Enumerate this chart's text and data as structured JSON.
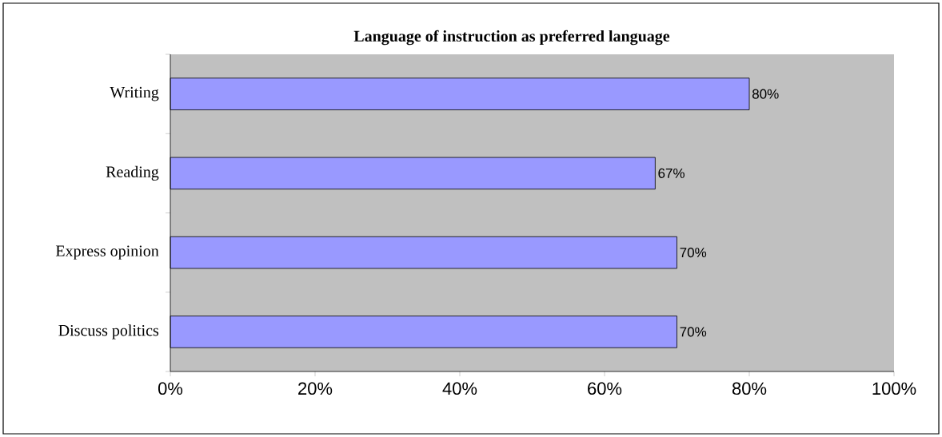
{
  "chart_data": {
    "type": "bar",
    "orientation": "horizontal",
    "title": "Language of instruction as preferred language",
    "categories": [
      "Writing",
      "Reading",
      "Express opinion",
      "Discuss politics"
    ],
    "values": [
      80,
      67,
      70,
      70
    ],
    "value_labels": [
      "80%",
      "67%",
      "70%",
      "70%"
    ],
    "color": "#9999ff",
    "xlim": [
      0,
      100
    ],
    "xticks": [
      {
        "value": 0,
        "label": "0%"
      },
      {
        "value": 20,
        "label": "20%"
      },
      {
        "value": 40,
        "label": "40%"
      },
      {
        "value": 60,
        "label": "60%"
      },
      {
        "value": 80,
        "label": "80%"
      },
      {
        "value": 100,
        "label": "100%"
      }
    ],
    "grid": false
  }
}
